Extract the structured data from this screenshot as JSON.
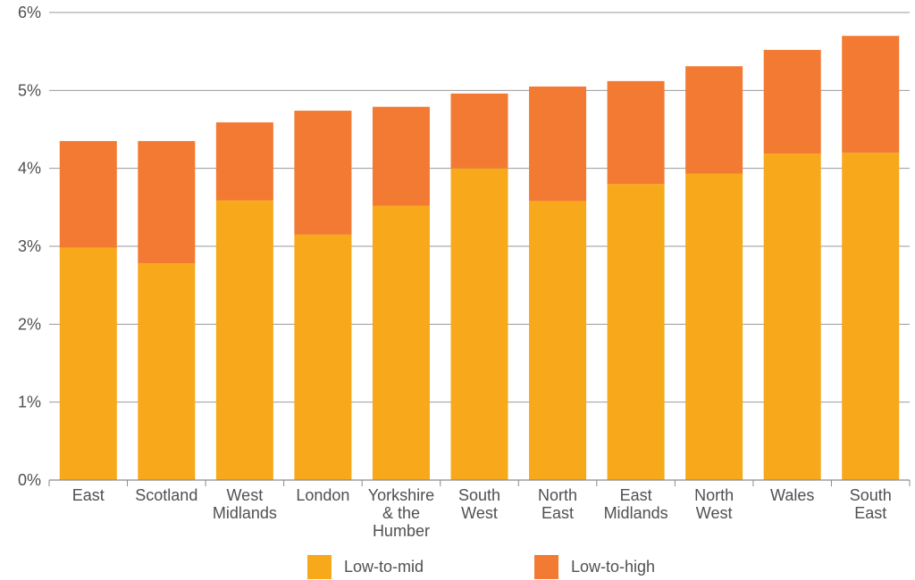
{
  "chart_data": {
    "type": "bar",
    "stacked": true,
    "categories": [
      [
        "East"
      ],
      [
        "Scotland"
      ],
      [
        "West",
        "Midlands"
      ],
      [
        "London"
      ],
      [
        "Yorkshire",
        "& the",
        "Humber"
      ],
      [
        "South",
        "West"
      ],
      [
        "North",
        "East"
      ],
      [
        "East",
        "Midlands"
      ],
      [
        "North",
        "West"
      ],
      [
        "Wales"
      ],
      [
        "South",
        "East"
      ]
    ],
    "series": [
      {
        "name": "Low-to-mid",
        "color": "#F7A81B",
        "values": [
          2.98,
          2.78,
          3.59,
          3.15,
          3.52,
          4.0,
          3.58,
          3.8,
          3.93,
          4.19,
          4.2
        ]
      },
      {
        "name": "Low-to-high",
        "color": "#F37A32",
        "values": [
          1.37,
          1.57,
          1.0,
          1.59,
          1.27,
          0.96,
          1.47,
          1.32,
          1.38,
          1.33,
          1.5
        ]
      }
    ],
    "yticks": [
      "0%",
      "1%",
      "2%",
      "3%",
      "4%",
      "5%",
      "6%"
    ],
    "ylim": [
      0,
      6
    ],
    "grid": true,
    "legend_position": "bottom",
    "title": "",
    "xlabel": "",
    "ylabel": ""
  }
}
